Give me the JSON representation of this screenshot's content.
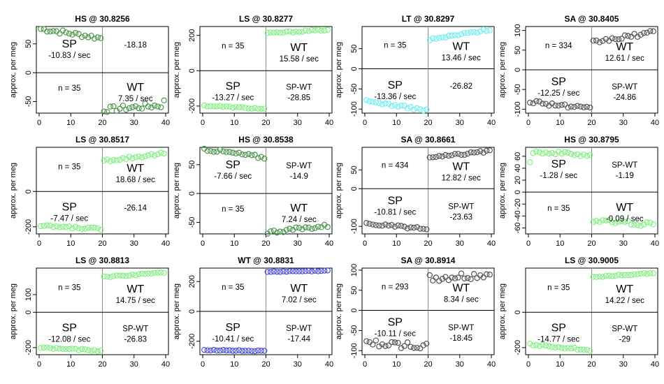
{
  "figure": {
    "y_label": "approx. per meg",
    "colors": {
      "light_green": "#80f080",
      "dark_green": "#4c964c",
      "black": "#555555",
      "cyan": "#70eff0",
      "blue": "#4a4ae0",
      "axis": "#000000",
      "divider": "#888888"
    }
  },
  "chart_data": [
    {
      "type": "scatter",
      "title": "HS @ 30.8256",
      "ylim": [
        -70,
        80
      ],
      "xlim": [
        0,
        40
      ],
      "yticks": [
        -50,
        0,
        50
      ],
      "xticks": [
        0,
        10,
        20,
        30,
        40
      ],
      "left_color": "dark_green",
      "right_color": "dark_green",
      "left": {
        "start": 76,
        "end": 60,
        "noise": 4
      },
      "right": {
        "start": -64,
        "end": -56,
        "noise": 5,
        "last": -48
      },
      "labels": {
        "tl": {
          "big": "SP",
          "small": "-10.83 / sec"
        },
        "tr": {
          "big": "",
          "small": "-18.18"
        },
        "bl": {
          "big": "",
          "small": "n = 35"
        },
        "br": {
          "big": "WT",
          "small": "7.35 / sec"
        }
      },
      "label_pos": {
        "tl": "upper",
        "tr": "upper",
        "bl": "upper",
        "br": "upper"
      }
    },
    {
      "type": "scatter",
      "title": "LS @ 30.8277",
      "ylim": [
        -240,
        250
      ],
      "xlim": [
        0,
        40
      ],
      "yticks": [
        -200,
        0,
        200
      ],
      "xticks": [
        0,
        10,
        20,
        30,
        40
      ],
      "left_color": "light_green",
      "right_color": "light_green",
      "left": {
        "start": -198,
        "end": -216,
        "noise": 4
      },
      "right": {
        "start": 212,
        "end": 232,
        "noise": 4
      },
      "labels": {
        "tl": {
          "big": "",
          "small": "n = 35"
        },
        "tr": {
          "big": "WT",
          "small": "15.58 / sec"
        },
        "bl": {
          "big": "SP",
          "small": "-13.27 / sec"
        },
        "br": {
          "big": "",
          "small": "SP-WT",
          "small2": "-28.85"
        }
      },
      "label_pos": {
        "tl": "mid",
        "tr": "lower",
        "bl": "upper",
        "br": "upper"
      }
    },
    {
      "type": "scatter",
      "title": "LT @ 30.8297",
      "ylim": [
        -110,
        105
      ],
      "xlim": [
        0,
        40
      ],
      "yticks": [
        -100,
        -50,
        0,
        50
      ],
      "xticks": [
        0,
        10,
        20,
        30,
        40
      ],
      "left_color": "cyan",
      "right_color": "cyan",
      "left": {
        "start": -80,
        "end": -103,
        "noise": 3
      },
      "right": {
        "start": 72,
        "end": 98,
        "noise": 3
      },
      "labels": {
        "tl": {
          "big": "",
          "small": "n = 35"
        },
        "tr": {
          "big": "WT",
          "small": "13.46 / sec"
        },
        "bl": {
          "big": "SP",
          "small": "-13.36 / sec"
        },
        "br": {
          "big": "",
          "small": "-26.82"
        }
      },
      "label_pos": {
        "tl": "mid",
        "tr": "lower",
        "bl": "upper",
        "br": "upper"
      }
    },
    {
      "type": "scatter",
      "title": "SA @ 30.8405",
      "ylim": [
        -110,
        110
      ],
      "xlim": [
        0,
        40
      ],
      "yticks": [
        -100,
        -50,
        0,
        50,
        100
      ],
      "xticks": [
        0,
        10,
        20,
        30,
        40
      ],
      "left_color": "black",
      "right_color": "black",
      "left": {
        "start": -80,
        "end": -100,
        "noise": 5
      },
      "right": {
        "start": 70,
        "end": 95,
        "noise": 5
      },
      "labels": {
        "tl": {
          "big": "",
          "small": "n = 334"
        },
        "tr": {
          "big": "WT",
          "small": "12.61 / sec"
        },
        "bl": {
          "big": "SP",
          "small": "-12.25 / sec"
        },
        "br": {
          "big": "",
          "small": "SP-WT",
          "small2": "-24.86"
        }
      },
      "label_pos": {
        "tl": "mid",
        "tr": "lower",
        "bl": "top",
        "br": "upper"
      }
    },
    {
      "type": "scatter",
      "title": "LS @ 30.8517",
      "ylim": [
        -240,
        250
      ],
      "xlim": [
        0,
        40
      ],
      "yticks": [
        -200,
        0
      ],
      "xticks": [
        0,
        10,
        20,
        30,
        40
      ],
      "left_color": "light_green",
      "right_color": "light_green",
      "left": {
        "start": -195,
        "end": -212,
        "noise": 6
      },
      "right": {
        "start": 175,
        "end": 215,
        "noise": 8
      },
      "labels": {
        "tl": {
          "big": "",
          "small": "n = 35"
        },
        "tr": {
          "big": "WT",
          "small": "18.68 / sec"
        },
        "bl": {
          "big": "SP",
          "small": "-7.47 / sec"
        },
        "br": {
          "big": "",
          "small": "-26.14"
        }
      },
      "label_pos": {
        "tl": "mid",
        "tr": "lower",
        "bl": "upper",
        "br": "upper"
      }
    },
    {
      "type": "scatter",
      "title": "HS @ 30.8538",
      "ylim": [
        -70,
        80
      ],
      "xlim": [
        0,
        40
      ],
      "yticks": [
        -50,
        0,
        50
      ],
      "xticks": [
        0,
        10,
        20,
        30,
        40
      ],
      "left_color": "dark_green",
      "right_color": "dark_green",
      "left": {
        "start": 77,
        "end": 62,
        "noise": 3
      },
      "right": {
        "start": -67,
        "end": -56,
        "noise": 3
      },
      "labels": {
        "tl": {
          "big": "SP",
          "small": "-7.66 / sec"
        },
        "tr": {
          "big": "",
          "small": "SP-WT",
          "small2": "-14.9"
        },
        "bl": {
          "big": "",
          "small": "n = 35"
        },
        "br": {
          "big": "WT",
          "small": "7.24 / sec"
        }
      },
      "label_pos": {
        "tl": "upper",
        "tr": "upper",
        "bl": "upper",
        "br": "upper"
      }
    },
    {
      "type": "scatter",
      "title": "SA @ 30.8661",
      "ylim": [
        -120,
        110
      ],
      "xlim": [
        0,
        40
      ],
      "yticks": [
        -100,
        0,
        50
      ],
      "xticks": [
        0,
        10,
        20,
        30,
        40
      ],
      "left_color": "black",
      "right_color": "black",
      "left": {
        "start": -93,
        "end": -107,
        "noise": 3
      },
      "right": {
        "start": 82,
        "end": 100,
        "noise": 3
      },
      "labels": {
        "tl": {
          "big": "",
          "small": "n = 434"
        },
        "tr": {
          "big": "WT",
          "small": "12.82 / sec"
        },
        "bl": {
          "big": "SP",
          "small": "-10.81 / sec"
        },
        "br": {
          "big": "",
          "small": "SP-WT",
          "small2": "-23.63"
        }
      },
      "label_pos": {
        "tl": "mid",
        "tr": "lower",
        "bl": "top",
        "br": "upper"
      }
    },
    {
      "type": "scatter",
      "title": "HS @ 30.8795",
      "ylim": [
        -70,
        75
      ],
      "xlim": [
        0,
        40
      ],
      "yticks": [
        -60,
        -40,
        -20,
        0,
        20,
        40,
        60
      ],
      "xticks": [
        0,
        10,
        20,
        30,
        40
      ],
      "left_color": "light_green",
      "right_color": "light_green",
      "left": {
        "start": 68,
        "end": 62,
        "noise": 3,
        "first": 50
      },
      "right": {
        "start": -48,
        "end": -54,
        "noise": 4
      },
      "labels": {
        "tl": {
          "big": "SP",
          "small": "-1.28 / sec"
        },
        "tr": {
          "big": "",
          "small": "SP-WT",
          "small2": "-1.19"
        },
        "bl": {
          "big": "",
          "small": "n = 35"
        },
        "br": {
          "big": "WT",
          "small": "-0.09 / sec"
        }
      },
      "label_pos": {
        "tl": "upper",
        "tr": "upper",
        "bl": "upper",
        "br": "upper"
      }
    },
    {
      "type": "scatter",
      "title": "LS @ 30.8813",
      "ylim": [
        -240,
        250
      ],
      "xlim": [
        0,
        40
      ],
      "yticks": [
        -200,
        0,
        100
      ],
      "xticks": [
        0,
        10,
        20,
        30,
        40
      ],
      "left_color": "light_green",
      "right_color": "light_green",
      "left": {
        "start": -200,
        "end": -218,
        "noise": 4
      },
      "right": {
        "start": 200,
        "end": 225,
        "noise": 4
      },
      "labels": {
        "tl": {
          "big": "",
          "small": "n = 35"
        },
        "tr": {
          "big": "WT",
          "small": "14.75 / sec"
        },
        "bl": {
          "big": "SP",
          "small": "-12.08 / sec"
        },
        "br": {
          "big": "",
          "small": "SP-WT",
          "small2": "-26.83"
        }
      },
      "label_pos": {
        "tl": "mid",
        "tr": "lower",
        "bl": "upper",
        "br": "upper"
      }
    },
    {
      "type": "scatter",
      "title": "WT @ 30.8831",
      "ylim": [
        -290,
        290
      ],
      "xlim": [
        0,
        40
      ],
      "yticks": [
        -200,
        0,
        200
      ],
      "xticks": [
        0,
        10,
        20,
        30,
        40
      ],
      "left_color": "blue",
      "right_color": "blue",
      "left": {
        "start": -258,
        "end": -266,
        "noise": 3
      },
      "right": {
        "start": 265,
        "end": 272,
        "noise": 3
      },
      "labels": {
        "tl": {
          "big": "",
          "small": "n = 35"
        },
        "tr": {
          "big": "WT",
          "small": "7.02 / sec"
        },
        "bl": {
          "big": "SP",
          "small": "-10.41 / sec"
        },
        "br": {
          "big": "",
          "small": "SP-WT",
          "small2": "-17.44"
        }
      },
      "label_pos": {
        "tl": "mid",
        "tr": "lower",
        "bl": "upper",
        "br": "upper"
      }
    },
    {
      "type": "scatter",
      "title": "SA @ 30.8914",
      "ylim": [
        -110,
        105
      ],
      "xlim": [
        0,
        40
      ],
      "yticks": [
        -100,
        -50,
        0,
        50,
        100
      ],
      "xticks": [
        0,
        10,
        20,
        30,
        40
      ],
      "left_color": "black",
      "right_color": "black",
      "left": {
        "start": -80,
        "end": -90,
        "noise": 8
      },
      "right": {
        "start": 78,
        "end": 88,
        "noise": 10
      },
      "labels": {
        "tl": {
          "big": "",
          "small": "n = 293"
        },
        "tr": {
          "big": "WT",
          "small": "8.34 / sec"
        },
        "bl": {
          "big": "SP",
          "small": "-10.11 / sec"
        },
        "br": {
          "big": "",
          "small": "SP-WT",
          "small2": "-18.45"
        }
      },
      "label_pos": {
        "tl": "mid",
        "tr": "lower",
        "bl": "top",
        "br": "upper"
      }
    },
    {
      "type": "scatter",
      "title": "LS @ 30.9005",
      "ylim": [
        -240,
        250
      ],
      "xlim": [
        0,
        40
      ],
      "yticks": [
        -200,
        0
      ],
      "xticks": [
        0,
        10,
        20,
        30,
        40
      ],
      "left_color": "light_green",
      "right_color": "light_green",
      "left": {
        "start": -182,
        "end": -214,
        "noise": 5
      },
      "right": {
        "start": 200,
        "end": 222,
        "noise": 3
      },
      "labels": {
        "tl": {
          "big": "",
          "small": "n = 35"
        },
        "tr": {
          "big": "WT",
          "small": "14.22 / sec"
        },
        "bl": {
          "big": "SP",
          "small": "-14.77 / sec"
        },
        "br": {
          "big": "",
          "small": "SP-WT",
          "small2": "-29"
        }
      },
      "label_pos": {
        "tl": "mid",
        "tr": "lower",
        "bl": "upper",
        "br": "upper"
      }
    }
  ]
}
